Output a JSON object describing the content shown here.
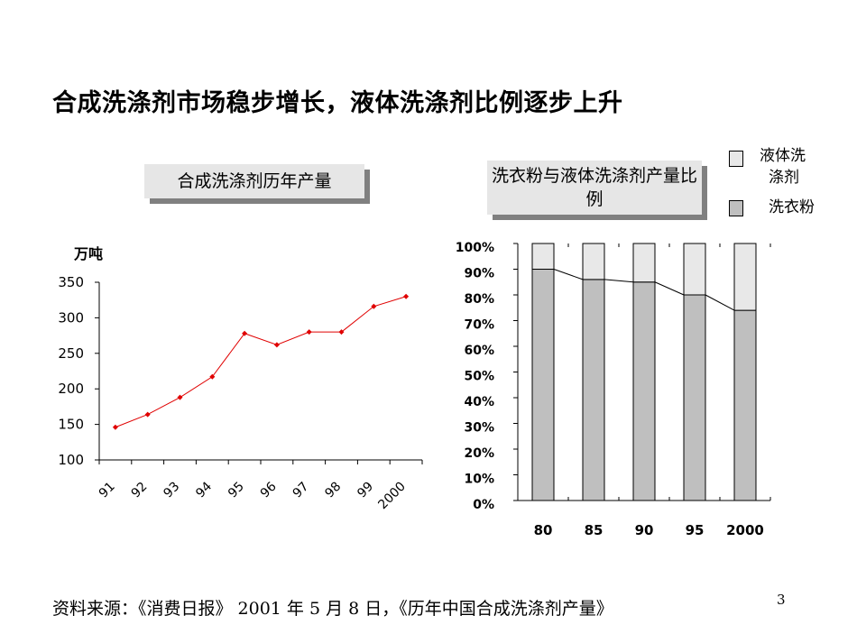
{
  "title": "合成洗涤剂市场稳步增长，液体洗涤剂比例逐步上升",
  "source": "资料来源：《消费日报》 2001 年 5 月 8 日，《历年中国合成洗涤剂产量》",
  "page_number": "3",
  "chart_data": [
    {
      "type": "line",
      "title": "合成洗涤剂历年产量",
      "ylabel": "万吨",
      "x": [
        "91",
        "92",
        "93",
        "94",
        "95",
        "96",
        "97",
        "98",
        "99",
        "2000"
      ],
      "y": [
        146,
        164,
        188,
        217,
        278,
        262,
        280,
        280,
        316,
        330
      ],
      "ylim": [
        100,
        350
      ],
      "yticks": [
        100,
        150,
        200,
        250,
        300,
        350
      ],
      "color": "#e00000"
    },
    {
      "type": "bar",
      "stacked": true,
      "title": "洗衣粉与液体洗涤剂产量比例",
      "categories": [
        "80",
        "85",
        "90",
        "95",
        "2000"
      ],
      "series": [
        {
          "name": "洗衣粉",
          "values": [
            90,
            86,
            85,
            80,
            74
          ],
          "color": "#bfbfbf"
        },
        {
          "name": "液体洗涤剂",
          "values": [
            10,
            14,
            15,
            20,
            26
          ],
          "color": "#e8e8e8"
        }
      ],
      "ylim": [
        0,
        100
      ],
      "yticks": [
        "0%",
        "10%",
        "20%",
        "30%",
        "40%",
        "50%",
        "60%",
        "70%",
        "80%",
        "90%",
        "100%"
      ],
      "legend": {
        "liquid_line1": "液体洗",
        "liquid_line2": "涤剂",
        "powder": "洗衣粉"
      }
    }
  ]
}
